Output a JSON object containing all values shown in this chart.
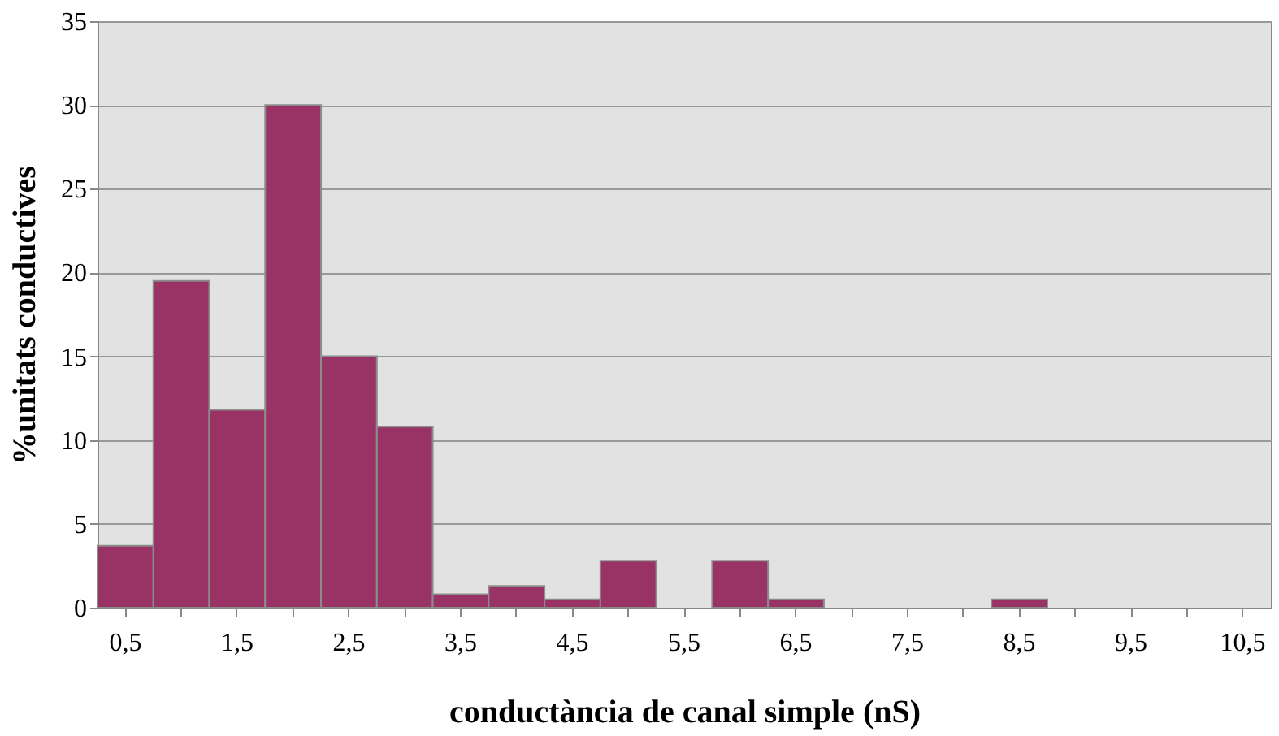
{
  "chart_data": {
    "type": "bar",
    "xlabel": "conductància de canal simple (nS)",
    "ylabel": "%unitats conductives",
    "categories": [
      "0,5",
      null,
      "1,5",
      null,
      "2,5",
      null,
      "3,5",
      null,
      "4,5",
      null,
      "5,5",
      null,
      "6,5",
      null,
      "7,5",
      null,
      "8,5",
      null,
      "9,5",
      null,
      "10,5"
    ],
    "values": [
      3.7,
      19.5,
      11.8,
      30,
      15,
      10.8,
      0.8,
      1.3,
      0.5,
      2.8,
      0,
      2.8,
      0.5,
      0,
      0,
      0,
      0.5,
      0,
      0,
      0,
      0
    ],
    "color": "#993366",
    "ylim": [
      0,
      35
    ],
    "yticks": [
      0,
      5,
      10,
      15,
      20,
      25,
      30,
      35
    ],
    "grid": "y"
  }
}
